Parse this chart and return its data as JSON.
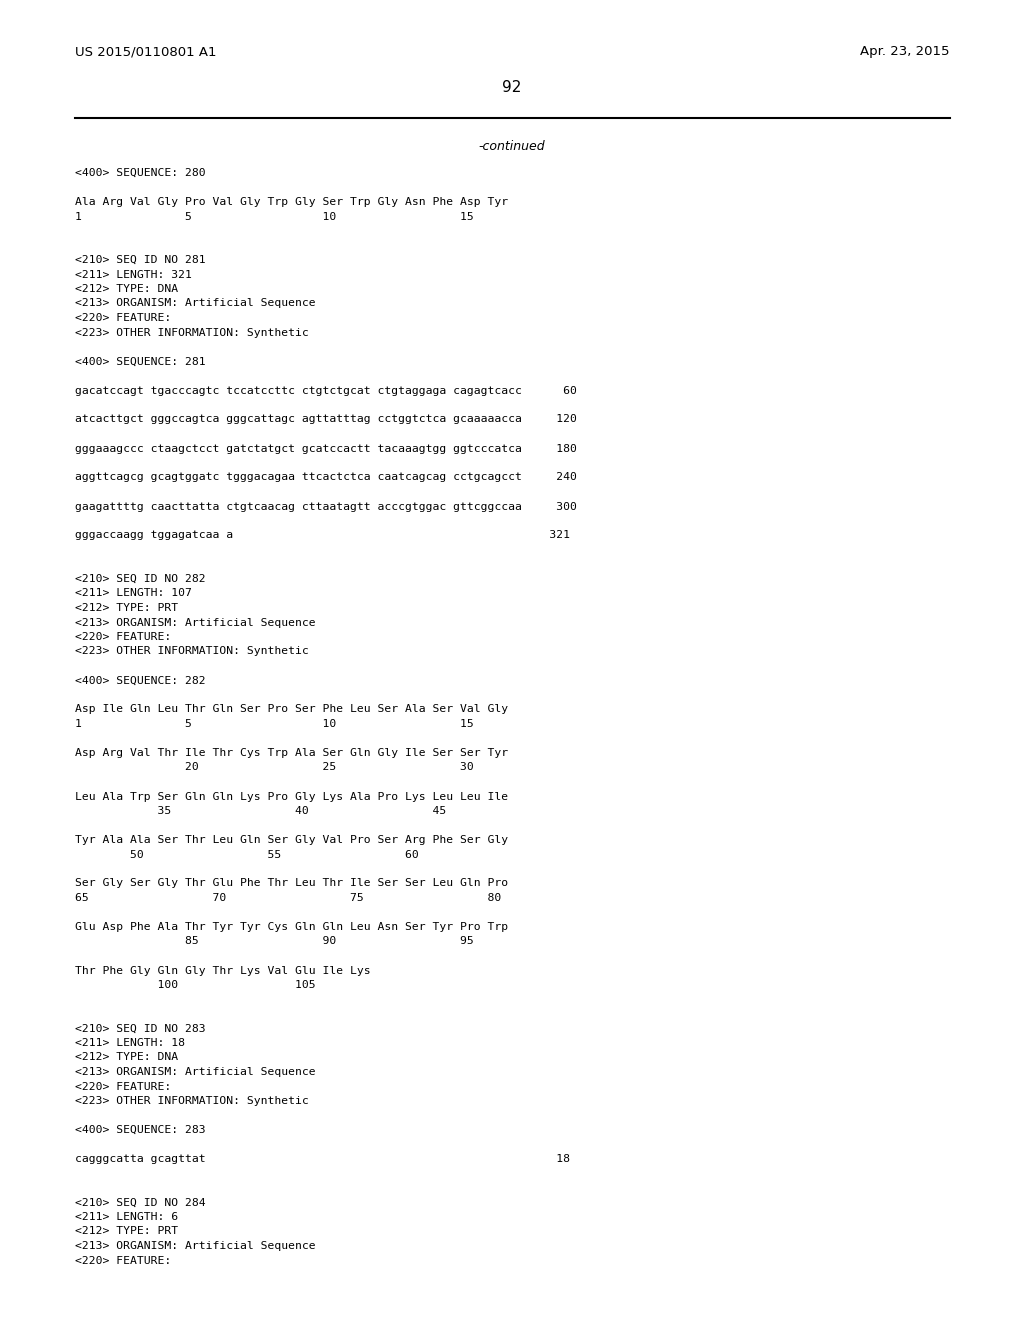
{
  "background_color": "#ffffff",
  "header_left": "US 2015/0110801 A1",
  "header_right": "Apr. 23, 2015",
  "page_number": "92",
  "continued_text": "-continued",
  "content_lines": [
    "<400> SEQUENCE: 280",
    "",
    "Ala Arg Val Gly Pro Val Gly Trp Gly Ser Trp Gly Asn Phe Asp Tyr",
    "1               5                   10                  15",
    "",
    "",
    "<210> SEQ ID NO 281",
    "<211> LENGTH: 321",
    "<212> TYPE: DNA",
    "<213> ORGANISM: Artificial Sequence",
    "<220> FEATURE:",
    "<223> OTHER INFORMATION: Synthetic",
    "",
    "<400> SEQUENCE: 281",
    "",
    "gacatccagt tgacccagtc tccatccttc ctgtctgcat ctgtaggaga cagagtcacc      60",
    "",
    "atcacttgct gggccagtca gggcattagc agttatttag cctggtctca gcaaaaacca     120",
    "",
    "gggaaagccc ctaagctcct gatctatgct gcatccactt tacaaagtgg ggtcccatca     180",
    "",
    "aggttcagcg gcagtggatc tgggacagaa ttcactctca caatcagcag cctgcagcct     240",
    "",
    "gaagattttg caacttatta ctgtcaacag cttaatagtt acccgtggac gttcggccaa     300",
    "",
    "gggaccaagg tggagatcaa a                                              321",
    "",
    "",
    "<210> SEQ ID NO 282",
    "<211> LENGTH: 107",
    "<212> TYPE: PRT",
    "<213> ORGANISM: Artificial Sequence",
    "<220> FEATURE:",
    "<223> OTHER INFORMATION: Synthetic",
    "",
    "<400> SEQUENCE: 282",
    "",
    "Asp Ile Gln Leu Thr Gln Ser Pro Ser Phe Leu Ser Ala Ser Val Gly",
    "1               5                   10                  15",
    "",
    "Asp Arg Val Thr Ile Thr Cys Trp Ala Ser Gln Gly Ile Ser Ser Tyr",
    "                20                  25                  30",
    "",
    "Leu Ala Trp Ser Gln Gln Lys Pro Gly Lys Ala Pro Lys Leu Leu Ile",
    "            35                  40                  45",
    "",
    "Tyr Ala Ala Ser Thr Leu Gln Ser Gly Val Pro Ser Arg Phe Ser Gly",
    "        50                  55                  60",
    "",
    "Ser Gly Ser Gly Thr Glu Phe Thr Leu Thr Ile Ser Ser Leu Gln Pro",
    "65                  70                  75                  80",
    "",
    "Glu Asp Phe Ala Thr Tyr Tyr Cys Gln Gln Leu Asn Ser Tyr Pro Trp",
    "                85                  90                  95",
    "",
    "Thr Phe Gly Gln Gly Thr Lys Val Glu Ile Lys",
    "            100                 105",
    "",
    "",
    "<210> SEQ ID NO 283",
    "<211> LENGTH: 18",
    "<212> TYPE: DNA",
    "<213> ORGANISM: Artificial Sequence",
    "<220> FEATURE:",
    "<223> OTHER INFORMATION: Synthetic",
    "",
    "<400> SEQUENCE: 283",
    "",
    "cagggcatta gcagttat                                                   18",
    "",
    "",
    "<210> SEQ ID NO 284",
    "<211> LENGTH: 6",
    "<212> TYPE: PRT",
    "<213> ORGANISM: Artificial Sequence",
    "<220> FEATURE:"
  ]
}
